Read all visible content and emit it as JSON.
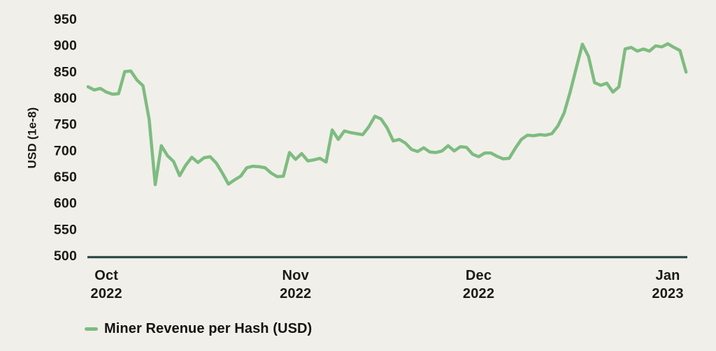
{
  "chart_data": {
    "type": "line",
    "title": "",
    "xlabel": "",
    "ylabel": "USD (1e-8)",
    "ylim": [
      500,
      950
    ],
    "yticks": [
      950,
      900,
      850,
      800,
      750,
      700,
      650,
      600,
      550,
      500
    ],
    "grid": false,
    "legend_position": "bottom-left",
    "x_axis": {
      "unit": "date",
      "cadence": "daily",
      "start_date": "2022-09-28",
      "end_date": "2023-01-04",
      "ticks": [
        {
          "label": "Oct",
          "year": "2022",
          "day_index": 3
        },
        {
          "label": "Nov",
          "year": "2022",
          "day_index": 34
        },
        {
          "label": "Dec",
          "year": "2022",
          "day_index": 64
        },
        {
          "label": "Jan",
          "year": "2023",
          "day_index": 95
        }
      ]
    },
    "series": [
      {
        "name": "Miner Revenue per Hash (USD)",
        "color": "#7dbc81",
        "values": [
          822,
          816,
          819,
          812,
          808,
          809,
          851,
          852,
          835,
          824,
          760,
          636,
          710,
          691,
          680,
          653,
          673,
          688,
          678,
          687,
          689,
          677,
          658,
          637,
          645,
          652,
          668,
          671,
          670,
          668,
          658,
          651,
          652,
          697,
          684,
          695,
          681,
          683,
          686,
          679,
          740,
          722,
          738,
          735,
          733,
          731,
          746,
          766,
          761,
          744,
          719,
          722,
          715,
          703,
          699,
          706,
          698,
          697,
          700,
          710,
          700,
          708,
          707,
          694,
          689,
          696,
          696,
          690,
          685,
          686,
          705,
          722,
          730,
          729,
          731,
          730,
          733,
          748,
          772,
          812,
          858,
          903,
          880,
          830,
          825,
          829,
          812,
          822,
          894,
          897,
          890,
          894,
          890,
          900,
          898,
          904,
          897,
          891,
          850
        ]
      }
    ],
    "colors": {
      "background": "#f1efe9",
      "axis_line": "#2e4c49",
      "text": "#1a1a16",
      "line": "#7dbc81"
    }
  }
}
